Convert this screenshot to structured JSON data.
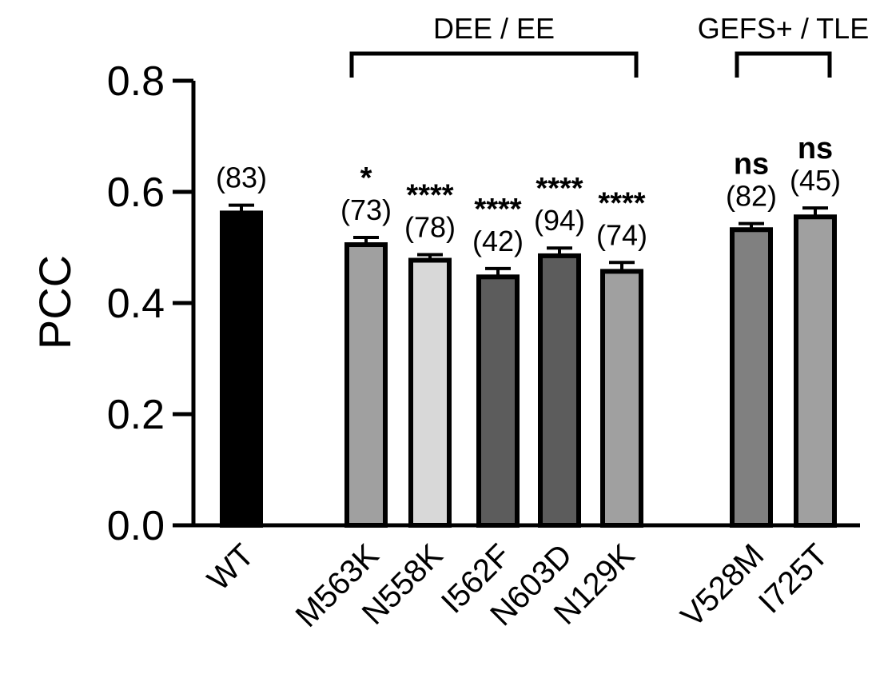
{
  "chart_data": {
    "type": "bar",
    "ylabel": "PCC",
    "ylim": [
      0,
      0.8
    ],
    "yticks": [
      "0.0",
      "0.2",
      "0.4",
      "0.6",
      "0.8"
    ],
    "ytick_values": [
      0,
      0.2,
      0.4,
      0.6,
      0.8
    ],
    "grid": false,
    "categories": [
      "WT",
      "M563K",
      "N558K",
      "I562F",
      "N603D",
      "N129K",
      "V528M",
      "I725T"
    ],
    "values": [
      0.562,
      0.505,
      0.477,
      0.447,
      0.485,
      0.457,
      0.532,
      0.555
    ],
    "errors": [
      0.014,
      0.013,
      0.01,
      0.015,
      0.014,
      0.016,
      0.011,
      0.016
    ],
    "n_labels": [
      "(83)",
      "(73)",
      "(78)",
      "(42)",
      "(94)",
      "(74)",
      "(82)",
      "(45)"
    ],
    "significance": [
      "",
      "*",
      "****",
      "****",
      "****",
      "****",
      "ns",
      "ns"
    ],
    "bar_colors": [
      "#000000",
      "#a0a0a0",
      "#d8d8d8",
      "#5c5c5c",
      "#5c5c5c",
      "#a0a0a0",
      "#808080",
      "#a0a0a0"
    ],
    "groups": [
      {
        "label": "DEE / EE",
        "from": 1,
        "to": 5
      },
      {
        "label": "GEFS+ / TLE",
        "from": 6,
        "to": 7
      }
    ]
  }
}
